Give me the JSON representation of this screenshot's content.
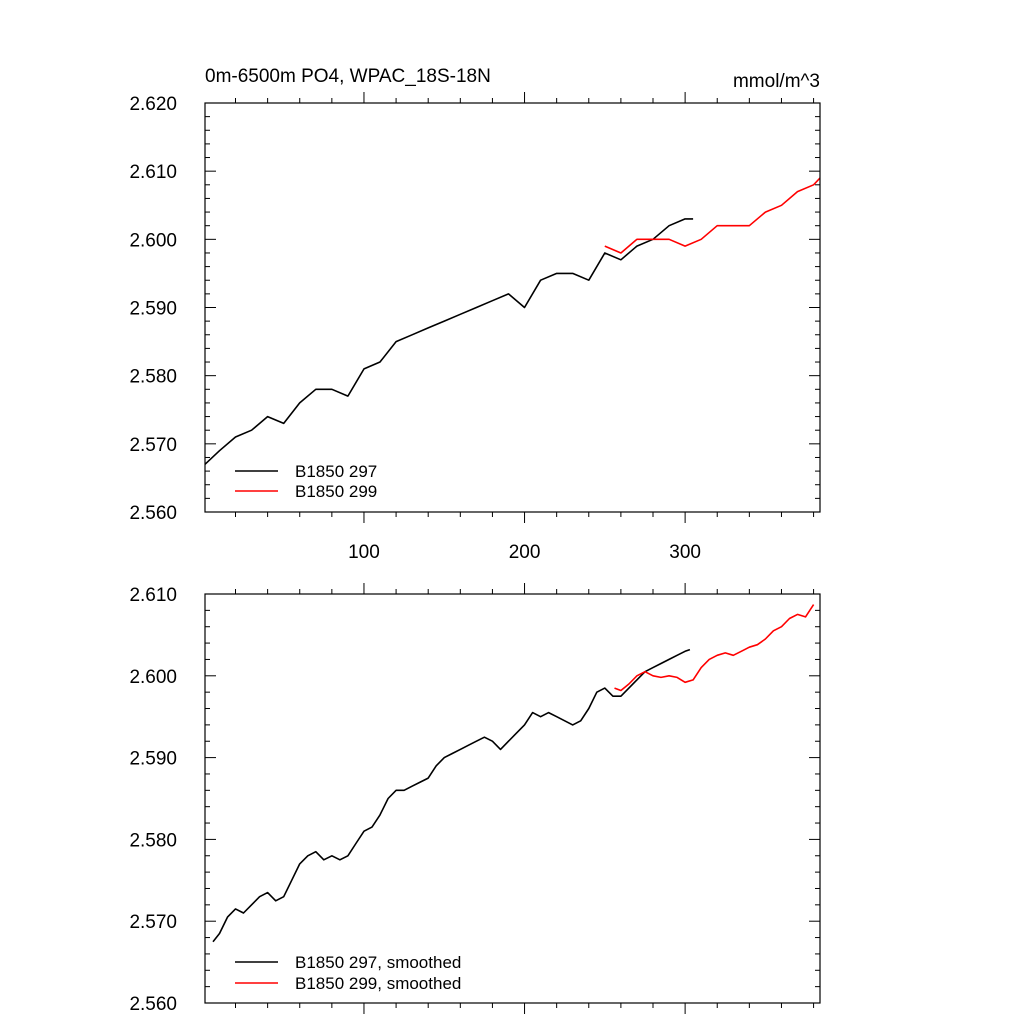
{
  "colors": {
    "series_black": "#000000",
    "series_red": "#ff0000"
  },
  "chart_data": [
    {
      "type": "line",
      "title": "0m-6500m PO4, WPAC_18S-18N",
      "units": "mmol/m^3",
      "xlim": [
        1,
        384
      ],
      "ylim": [
        2.56,
        2.62
      ],
      "x_ticks": [
        100,
        200,
        300
      ],
      "x_tick_labels": [
        "100",
        "200",
        "300"
      ],
      "y_ticks": [
        2.56,
        2.57,
        2.58,
        2.59,
        2.6,
        2.61,
        2.62
      ],
      "y_tick_labels": [
        "2.560",
        "2.570",
        "2.580",
        "2.590",
        "2.600",
        "2.610",
        "2.620"
      ],
      "legend_position": "bottom-left",
      "series": [
        {
          "name": "B1850 297",
          "color": "#000000",
          "x": [
            1,
            10,
            20,
            30,
            40,
            50,
            60,
            70,
            80,
            90,
            100,
            110,
            120,
            130,
            140,
            150,
            160,
            170,
            180,
            190,
            200,
            210,
            220,
            230,
            240,
            250,
            260,
            270,
            280,
            290,
            300,
            305
          ],
          "y": [
            2.567,
            2.569,
            2.571,
            2.572,
            2.574,
            2.573,
            2.576,
            2.578,
            2.578,
            2.577,
            2.581,
            2.582,
            2.585,
            2.586,
            2.587,
            2.588,
            2.589,
            2.59,
            2.591,
            2.592,
            2.59,
            2.594,
            2.595,
            2.595,
            2.594,
            2.598,
            2.597,
            2.599,
            2.6,
            2.602,
            2.603,
            2.603
          ]
        },
        {
          "name": "B1850 299",
          "color": "#ff0000",
          "x": [
            250,
            260,
            270,
            280,
            290,
            300,
            310,
            320,
            330,
            340,
            350,
            360,
            370,
            380,
            384
          ],
          "y": [
            2.599,
            2.598,
            2.6,
            2.6,
            2.6,
            2.599,
            2.6,
            2.602,
            2.602,
            2.602,
            2.604,
            2.605,
            2.607,
            2.608,
            2.609
          ]
        }
      ]
    },
    {
      "type": "line",
      "xlim": [
        1,
        384
      ],
      "ylim": [
        2.56,
        2.61
      ],
      "x_ticks": [
        100,
        200,
        300
      ],
      "y_ticks": [
        2.56,
        2.57,
        2.58,
        2.59,
        2.6,
        2.61
      ],
      "y_tick_labels": [
        "2.560",
        "2.570",
        "2.580",
        "2.590",
        "2.600",
        "2.610"
      ],
      "legend_position": "bottom-left",
      "series": [
        {
          "name": "B1850 297, smoothed",
          "color": "#000000",
          "x": [
            6,
            10,
            15,
            20,
            25,
            30,
            35,
            40,
            45,
            50,
            55,
            60,
            65,
            70,
            75,
            80,
            85,
            90,
            95,
            100,
            105,
            110,
            115,
            120,
            125,
            130,
            135,
            140,
            145,
            150,
            155,
            160,
            165,
            170,
            175,
            180,
            185,
            190,
            195,
            200,
            205,
            210,
            215,
            220,
            225,
            230,
            235,
            240,
            245,
            250,
            255,
            260,
            265,
            270,
            275,
            280,
            285,
            290,
            295,
            300,
            303
          ],
          "y": [
            2.5675,
            2.5685,
            2.5705,
            2.5715,
            2.571,
            2.572,
            2.573,
            2.5735,
            2.5725,
            2.573,
            2.575,
            2.577,
            2.578,
            2.5785,
            2.5775,
            2.578,
            2.5775,
            2.578,
            2.5795,
            2.581,
            2.5815,
            2.583,
            2.585,
            2.586,
            2.586,
            2.5865,
            2.587,
            2.5875,
            2.589,
            2.59,
            2.5905,
            2.591,
            2.5915,
            2.592,
            2.5925,
            2.592,
            2.591,
            2.592,
            2.593,
            2.594,
            2.5955,
            2.595,
            2.5955,
            2.595,
            2.5945,
            2.594,
            2.5945,
            2.596,
            2.598,
            2.5985,
            2.5975,
            2.5975,
            2.5985,
            2.5995,
            2.6005,
            2.601,
            2.6015,
            2.602,
            2.6025,
            2.603,
            2.6032
          ]
        },
        {
          "name": "B1850 299, smoothed",
          "color": "#ff0000",
          "x": [
            256,
            260,
            265,
            270,
            275,
            280,
            285,
            290,
            295,
            300,
            305,
            310,
            315,
            320,
            325,
            330,
            335,
            340,
            345,
            350,
            355,
            360,
            365,
            370,
            375,
            380
          ],
          "y": [
            2.5985,
            2.5982,
            2.599,
            2.6,
            2.6005,
            2.6,
            2.5998,
            2.6,
            2.5998,
            2.5992,
            2.5995,
            2.601,
            2.602,
            2.6025,
            2.6028,
            2.6025,
            2.603,
            2.6035,
            2.6038,
            2.6045,
            2.6055,
            2.606,
            2.607,
            2.6075,
            2.6072,
            2.6087
          ]
        }
      ]
    }
  ]
}
